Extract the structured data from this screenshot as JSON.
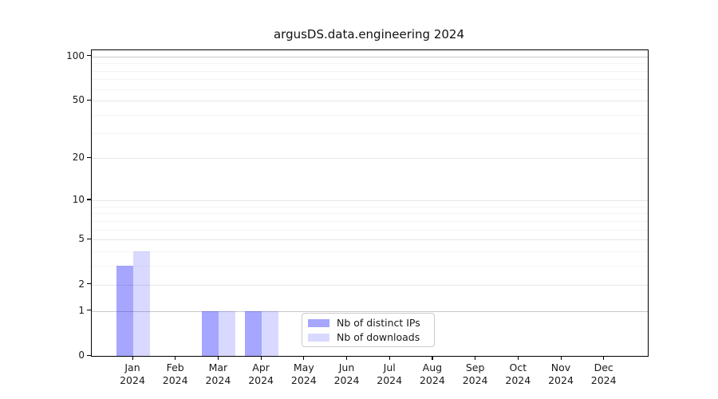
{
  "title": "argusDS.data.engineering 2024",
  "chart_data": {
    "type": "bar",
    "title": "argusDS.data.engineering 2024",
    "categories": [
      "Jan",
      "Feb",
      "Mar",
      "Apr",
      "May",
      "Jun",
      "Jul",
      "Aug",
      "Sep",
      "Oct",
      "Nov",
      "Dec"
    ],
    "year_label": "2024",
    "series": [
      {
        "name": "Nb of distinct IPs",
        "color": "rgba(0,0,255,0.35)",
        "values": [
          3,
          0,
          1,
          1,
          0,
          0,
          0,
          0,
          0,
          0,
          0,
          0
        ]
      },
      {
        "name": "Nb of downloads",
        "color": "rgba(0,0,255,0.15)",
        "values": [
          4,
          0,
          1,
          1,
          0,
          0,
          0,
          0,
          0,
          0,
          0,
          0
        ]
      }
    ],
    "xlabel": "",
    "ylabel": "",
    "yscale": "log1p",
    "yticks": [
      0,
      1,
      2,
      5,
      10,
      20,
      50,
      100
    ],
    "yticks_minor": [
      3,
      4,
      6,
      7,
      8,
      9,
      30,
      40,
      60,
      70,
      80,
      90
    ],
    "ylim": [
      0,
      110
    ],
    "grid": true,
    "legend_position": "lower center"
  }
}
